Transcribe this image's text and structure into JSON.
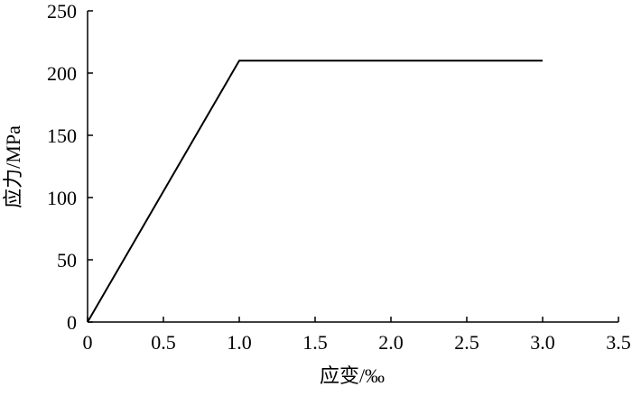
{
  "chart_data": {
    "type": "line",
    "x_label": "应变/‰",
    "y_label": "应力/MPa",
    "x": [
      0,
      1.0,
      3.0
    ],
    "values": [
      0,
      210,
      210
    ],
    "color": "#000000",
    "xlim": [
      0,
      3.5
    ],
    "xticks": [
      0,
      0.5,
      {
        "value": 1,
        "label": "1.0"
      },
      1.5,
      {
        "value": 2,
        "label": "2.0"
      },
      2.5,
      {
        "value": 3,
        "label": "3.0"
      },
      3.5
    ],
    "ylim": [
      0,
      250
    ],
    "yticks": [
      0,
      50,
      100,
      150,
      200,
      250
    ]
  }
}
